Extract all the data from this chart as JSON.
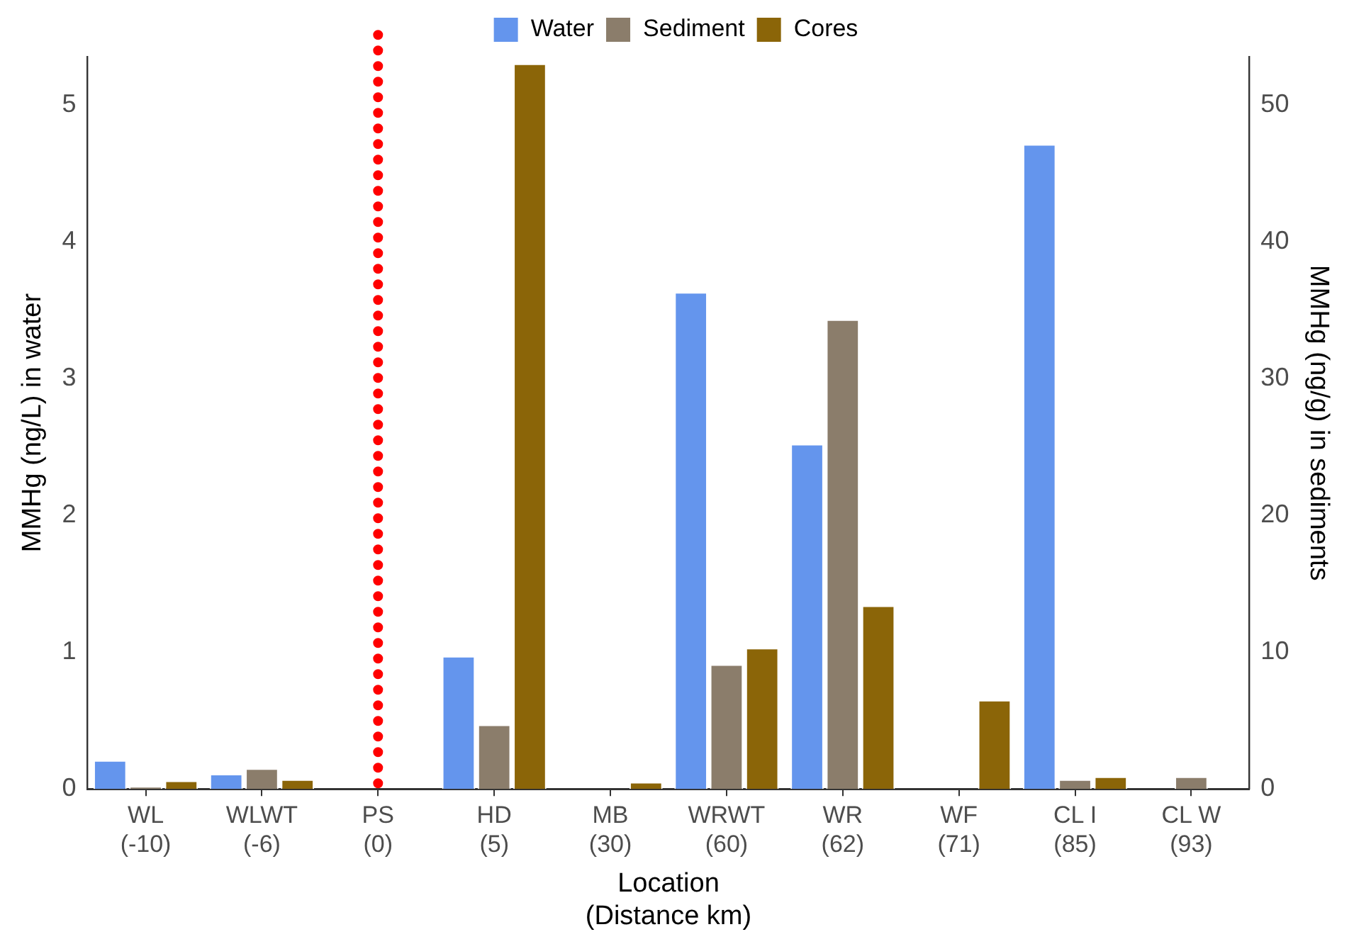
{
  "chart_data": {
    "type": "bar",
    "xlabel": "Location\n(Distance km)",
    "ylabel": "MMHg (ng/L) in water",
    "y2label": "MMHg (ng/g) in sediments",
    "categories": [
      "WL\n(-10)",
      "WLWT\n(-6)",
      "PS\n(0)",
      "HD\n(5)",
      "MB\n(30)",
      "WRWT\n(60)",
      "WR\n(62)",
      "WF\n(71)",
      "CL I\n(85)",
      "CL W\n(93)"
    ],
    "series": [
      {
        "name": "Water",
        "color": "#6495ed",
        "values": [
          0.21,
          0.11,
          null,
          0.97,
          null,
          3.63,
          2.52,
          null,
          4.71,
          null
        ]
      },
      {
        "name": "Sediment",
        "color": "#8b7d6b",
        "axis": "y2",
        "values": [
          0.2,
          1.5,
          null,
          4.7,
          null,
          9.1,
          34.3,
          null,
          0.7,
          0.9
        ]
      },
      {
        "name": "Cores",
        "color": "#8b6508",
        "axis": "y2",
        "values": [
          0.6,
          0.7,
          null,
          53,
          0.5,
          10.3,
          13.4,
          6.5,
          0.9,
          null
        ]
      }
    ],
    "ylim": [
      0,
      5.35
    ],
    "yticks": [
      0,
      1,
      2,
      3,
      4,
      5
    ],
    "y2lim": [
      0,
      53.5
    ],
    "y2ticks": [
      0,
      10,
      20,
      30,
      40,
      50
    ],
    "ref_lines": [
      {
        "axis": "x",
        "value": "PS\n(0)",
        "color": "#ff0000",
        "line_style": "dotted"
      }
    ],
    "legend": "top",
    "grid": false
  }
}
